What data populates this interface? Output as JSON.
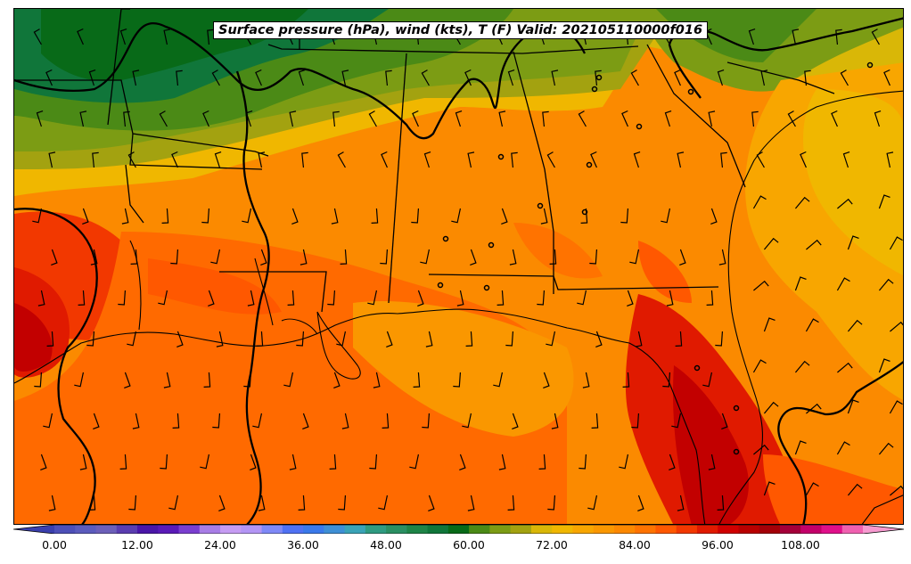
{
  "title": "Surface pressure (hPa), wind (kts), T (F) Valid: 202105110000f016",
  "colorbar": {
    "min": -4,
    "max": 116,
    "step": 4,
    "tick_values": [
      0,
      12,
      24,
      36,
      48,
      60,
      72,
      84,
      96,
      108
    ],
    "tick_labels": [
      "0.00",
      "12.00",
      "24.00",
      "36.00",
      "48.00",
      "60.00",
      "72.00",
      "84.00",
      "96.00",
      "108.00"
    ],
    "colors": [
      "#3a3fae",
      "#4d4fb8",
      "#5b5bbd",
      "#6c5fb9",
      "#5a3db0",
      "#4a16a8",
      "#5a1ab8",
      "#7a3ed0",
      "#a87de6",
      "#c69cf3",
      "#b395f5",
      "#7f89f7",
      "#4f71f3",
      "#3a79ea",
      "#3e8fd5",
      "#3aa3b7",
      "#2f9b81",
      "#2a8f62",
      "#1e8447",
      "#10763a",
      "#086a18",
      "#4b8a16",
      "#7c9c14",
      "#a3a210",
      "#d9b707",
      "#f0b700",
      "#f8a600",
      "#fa9700",
      "#fc8800",
      "#ff7300",
      "#ff5800",
      "#f23800",
      "#e01a00",
      "#d00000",
      "#b90000",
      "#a40008",
      "#a5003a",
      "#c4006a",
      "#e0108a",
      "#f060b0",
      "#f79ad0"
    ]
  },
  "icons": [
    "temperature-field",
    "pressure-isobars",
    "wind-barbs",
    "state-borders",
    "coastline"
  ]
}
